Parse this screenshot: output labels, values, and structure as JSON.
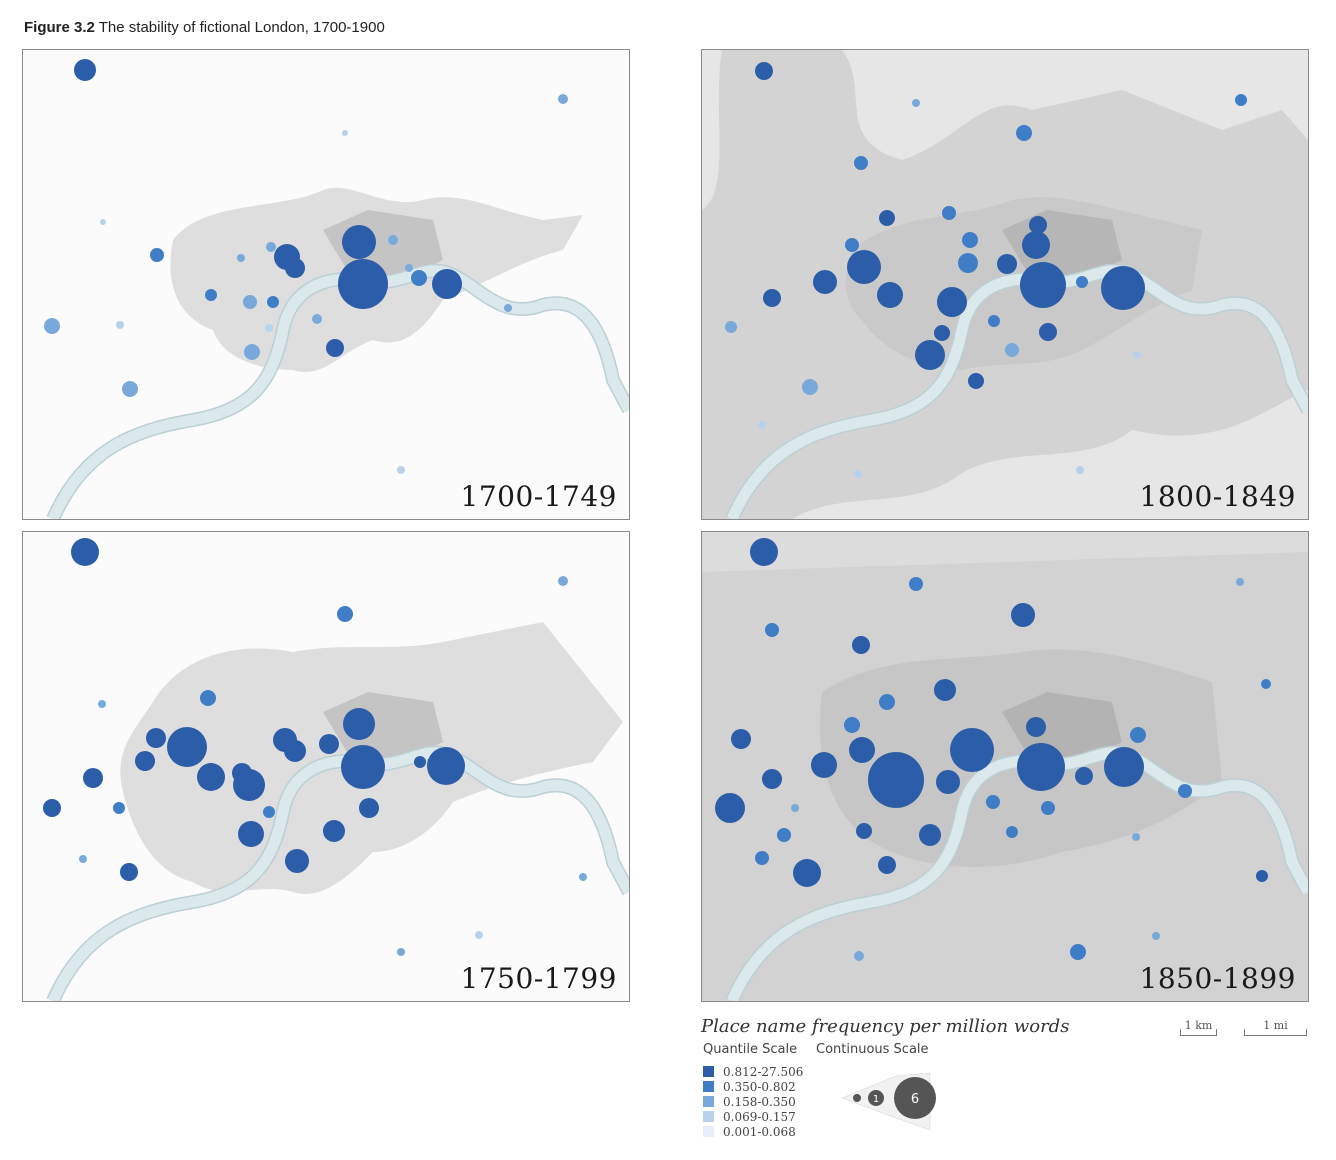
{
  "figure": {
    "number": "Figure 3.2",
    "title": "The stability of fictional London, 1700-1900"
  },
  "panels": [
    {
      "period": "1700-1749"
    },
    {
      "period": "1800-1849"
    },
    {
      "period": "1750-1799"
    },
    {
      "period": "1850-1899"
    }
  ],
  "legend": {
    "title": "Place name frequency per million words",
    "quantile_label": "Quantile Scale",
    "continuous_label": "Continuous Scale",
    "quantiles": [
      {
        "label": "0.812-27.506",
        "color": "#2b5da8"
      },
      {
        "label": "0.350-0.802",
        "color": "#3f7ec6"
      },
      {
        "label": "0.158-0.350",
        "color": "#78a9da"
      },
      {
        "label": "0.069-0.157",
        "color": "#b8d2ec"
      },
      {
        "label": "0.001-0.068",
        "color": "#e6eef8"
      }
    ],
    "continuous_marks": [
      "1",
      "6"
    ],
    "scale_km": "1 km",
    "scale_mi": "1 mi"
  },
  "colors": {
    "river": "#d8e6ea",
    "river_edge": "#b9cdd3",
    "urban": "#dcdcdc",
    "urban_dark": "#cfcfcf",
    "city": "#bdbdbd"
  }
}
